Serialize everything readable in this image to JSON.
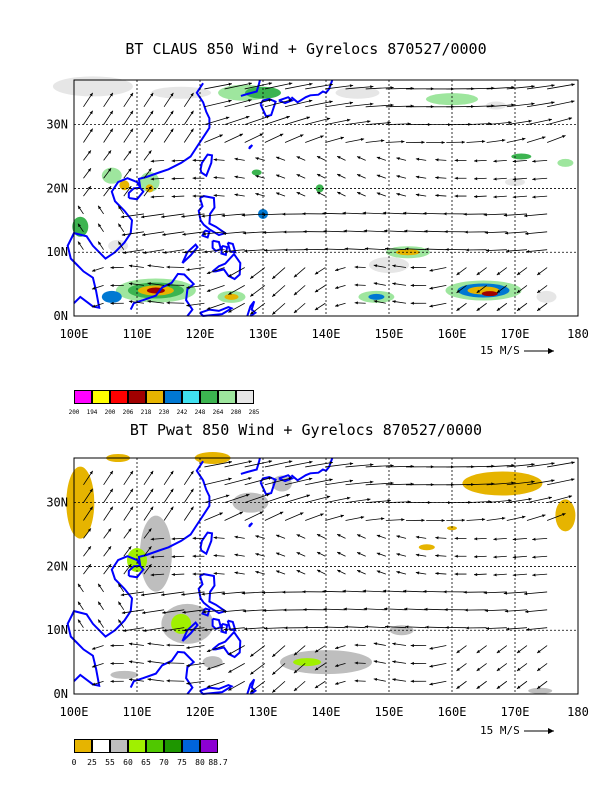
{
  "panels": [
    {
      "title": "BT CLAUS 850 Wind + Gyrelocs 870527/0000",
      "lon_labels": [
        "100E",
        "110E",
        "120E",
        "130E",
        "140E",
        "150E",
        "160E",
        "170E",
        "180"
      ],
      "lat_labels": [
        "0N",
        "10N",
        "20N",
        "30N"
      ],
      "scale_label": "15 M/S",
      "colorbar_values": [
        "200",
        "194",
        "200",
        "206",
        "218",
        "230",
        "242",
        "248",
        "264",
        "280",
        "285"
      ],
      "colorbar_colors": [
        "#ff00ff",
        "#ffff00",
        "#ff0000",
        "#a00000",
        "#e6b400",
        "#0078d2",
        "#40e0f0",
        "#3cb450",
        "#9ee69e",
        "#e6e6e6"
      ]
    },
    {
      "title": "BT Pwat 850 Wind + Gyrelocs 870527/0000",
      "lon_labels": [
        "100E",
        "110E",
        "120E",
        "130E",
        "140E",
        "150E",
        "160E",
        "170E",
        "180"
      ],
      "lat_labels": [
        "0N",
        "10N",
        "20N",
        "30N"
      ],
      "scale_label": "15 M/S",
      "colorbar_values": [
        "0",
        "25",
        "55",
        "60",
        "65",
        "70",
        "75",
        "80",
        "88.7"
      ],
      "colorbar_colors": [
        "#e6b400",
        "#ffffff",
        "#bebebe",
        "#a0f000",
        "#50c800",
        "#1e9600",
        "#0064dc",
        "#8c00d2"
      ]
    }
  ],
  "colors": {
    "coastline": "#0000ff",
    "arrow": "#000000",
    "grid": "#000000"
  }
}
